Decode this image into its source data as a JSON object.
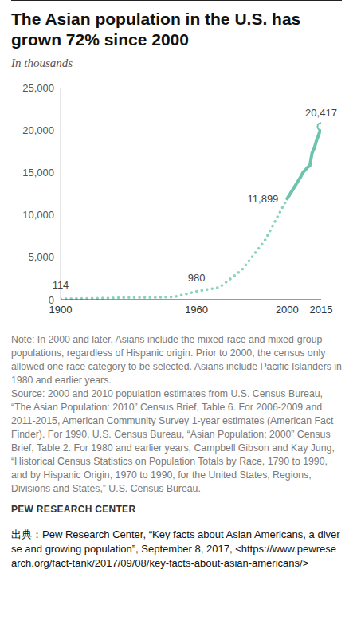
{
  "chart_data": {
    "type": "line",
    "title": "The Asian population in the U.S. has grown 72% since 2000",
    "subtitle": "In thousands",
    "x": [
      1900,
      1910,
      1920,
      1930,
      1940,
      1950,
      1960,
      1970,
      1980,
      1990,
      2000,
      2006,
      2007,
      2008,
      2009,
      2010,
      2011,
      2012,
      2013,
      2014,
      2015
    ],
    "series": [
      {
        "color": "#8ad3c0",
        "line_style": "dotted",
        "values": [
          114,
          146,
          182,
          265,
          255,
          321,
          980,
          1439,
          3500,
          6909,
          11899,
          null,
          null,
          null,
          null,
          null,
          null,
          null,
          null,
          null,
          null
        ]
      },
      {
        "color": "#6cc4ad",
        "line_style": "solid",
        "marker": "circle",
        "values": [
          null,
          null,
          null,
          null,
          null,
          null,
          null,
          null,
          null,
          null,
          11899,
          14500,
          15000,
          15300,
          15600,
          15800,
          17300,
          17900,
          18800,
          19500,
          20417
        ]
      }
    ],
    "annotations": [
      {
        "x": 1900,
        "y": 114,
        "label": "114"
      },
      {
        "x": 1960,
        "y": 980,
        "label": "980"
      },
      {
        "x": 2000,
        "y": 11899,
        "label": "11,899"
      },
      {
        "x": 2015,
        "y": 20417,
        "label": "20,417"
      }
    ],
    "xlim": [
      1900,
      2015
    ],
    "xticks": [
      1900,
      1960,
      2000,
      2015
    ],
    "ylim": [
      0,
      25000
    ],
    "yticks": [
      0,
      {
        "value": 5000,
        "label": "5,000"
      },
      {
        "value": 10000,
        "label": "10,000"
      },
      {
        "value": 15000,
        "label": "15,000"
      },
      {
        "value": 20000,
        "label": "20,000"
      },
      {
        "value": 25000,
        "label": "25,000"
      }
    ],
    "grid": false,
    "note": "Note: In 2000 and later, Asians include the mixed-race and mixed-group populations, regardless of Hispanic origin. Prior to 2000, the census only allowed one race category to be selected. Asians include Pacific Islanders in 1980 and earlier years.",
    "source": "Source: 2000 and 2010 population estimates from U.S. Census Bureau, “The Asian Population: 2010” Census Brief, Table 6. For 2006-2009 and 2011-2015, American Community Survey 1-year estimates (American Fact Finder). For 1990, U.S. Census Bureau, “Asian Population: 2000” Census Brief, Table 2. For 1980 and earlier years, Campbell Gibson and Kay Jung, “Historical Census Statistics on Population Totals by Race, 1790 to 1990, and by Hispanic Origin, 1970 to 1990, for the United States, Regions, Divisions and States,” U.S. Census Bureau.",
    "brand": "PEW RESEARCH CENTER",
    "credit": "出典：Pew Research Center, “Key facts about Asian Americans, a diverse and growing population”, September 8, 2017, <https://www.pewresearch.org/fact-tank/2017/09/08/key-facts-about-asian-americans/>"
  }
}
